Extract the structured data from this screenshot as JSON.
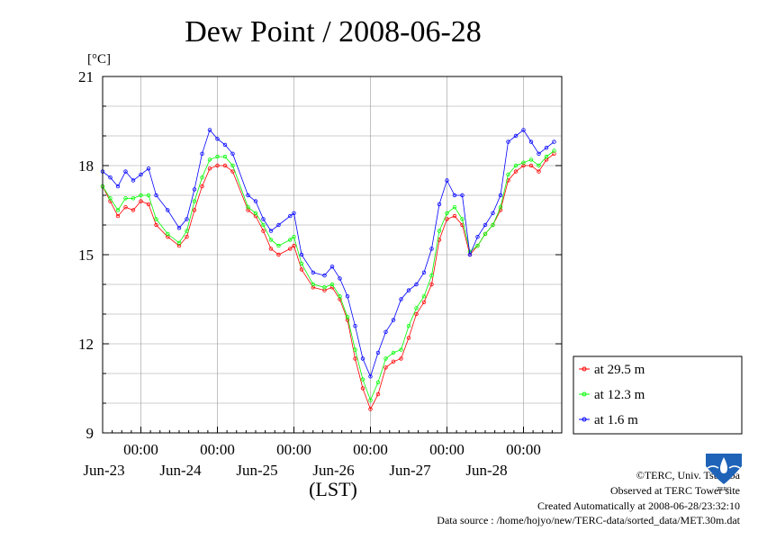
{
  "chart_data": {
    "type": "line",
    "title": "Dew Point / 2008-06-28",
    "yunit": "[°C]",
    "xlabel": "(LST)",
    "ylim": [
      9,
      21
    ],
    "yticks": [
      9,
      12,
      15,
      18,
      21
    ],
    "xlim": [
      0,
      6
    ],
    "x_units": "days from 2008-06-22 12:00 LST",
    "x_ticks": [
      {
        "x": 0.5,
        "label": "00:00",
        "date": "Jun-23"
      },
      {
        "x": 1.5,
        "label": "00:00",
        "date": "Jun-24"
      },
      {
        "x": 2.5,
        "label": "00:00",
        "date": "Jun-25"
      },
      {
        "x": 3.5,
        "label": "00:00",
        "date": "Jun-26"
      },
      {
        "x": 4.5,
        "label": "00:00",
        "date": "Jun-27"
      },
      {
        "x": 5.5,
        "label": "00:00",
        "date": "Jun-28"
      }
    ],
    "grid": true,
    "legend_position": "right-bottom",
    "series": [
      {
        "name": "at 29.5 m",
        "color": "#ff0000",
        "points": [
          [
            0.0,
            17.3
          ],
          [
            0.1,
            16.8
          ],
          [
            0.2,
            16.3
          ],
          [
            0.3,
            16.6
          ],
          [
            0.4,
            16.5
          ],
          [
            0.5,
            16.8
          ],
          [
            0.6,
            16.7
          ],
          [
            0.7,
            16.0
          ],
          [
            0.85,
            15.6
          ],
          [
            1.0,
            15.3
          ],
          [
            1.1,
            15.6
          ],
          [
            1.2,
            16.5
          ],
          [
            1.3,
            17.3
          ],
          [
            1.4,
            17.9
          ],
          [
            1.5,
            18.0
          ],
          [
            1.6,
            18.0
          ],
          [
            1.7,
            17.8
          ],
          [
            1.9,
            16.5
          ],
          [
            2.0,
            16.3
          ],
          [
            2.1,
            15.8
          ],
          [
            2.2,
            15.2
          ],
          [
            2.3,
            15.0
          ],
          [
            2.45,
            15.2
          ],
          [
            2.5,
            15.3
          ],
          [
            2.6,
            14.5
          ],
          [
            2.75,
            13.9
          ],
          [
            2.9,
            13.8
          ],
          [
            3.0,
            13.9
          ],
          [
            3.1,
            13.5
          ],
          [
            3.2,
            12.8
          ],
          [
            3.3,
            11.5
          ],
          [
            3.4,
            10.5
          ],
          [
            3.5,
            9.8
          ],
          [
            3.6,
            10.3
          ],
          [
            3.7,
            11.2
          ],
          [
            3.8,
            11.4
          ],
          [
            3.9,
            11.5
          ],
          [
            4.0,
            12.2
          ],
          [
            4.1,
            13.0
          ],
          [
            4.2,
            13.4
          ],
          [
            4.3,
            14.0
          ],
          [
            4.4,
            15.5
          ],
          [
            4.5,
            16.2
          ],
          [
            4.6,
            16.3
          ],
          [
            4.7,
            16.0
          ],
          [
            4.8,
            15.0
          ],
          [
            4.9,
            15.3
          ],
          [
            5.0,
            15.7
          ],
          [
            5.1,
            16.0
          ],
          [
            5.2,
            16.5
          ],
          [
            5.3,
            17.5
          ],
          [
            5.4,
            17.8
          ],
          [
            5.5,
            18.0
          ],
          [
            5.6,
            18.0
          ],
          [
            5.7,
            17.8
          ],
          [
            5.8,
            18.2
          ],
          [
            5.9,
            18.4
          ]
        ]
      },
      {
        "name": "at 12.3 m",
        "color": "#00ff00",
        "points": [
          [
            0.0,
            17.3
          ],
          [
            0.1,
            16.9
          ],
          [
            0.2,
            16.5
          ],
          [
            0.3,
            16.9
          ],
          [
            0.4,
            16.9
          ],
          [
            0.5,
            17.0
          ],
          [
            0.6,
            17.0
          ],
          [
            0.7,
            16.2
          ],
          [
            0.85,
            15.7
          ],
          [
            1.0,
            15.4
          ],
          [
            1.1,
            15.8
          ],
          [
            1.2,
            16.8
          ],
          [
            1.3,
            17.6
          ],
          [
            1.4,
            18.2
          ],
          [
            1.5,
            18.3
          ],
          [
            1.6,
            18.3
          ],
          [
            1.7,
            18.0
          ],
          [
            1.9,
            16.6
          ],
          [
            2.0,
            16.4
          ],
          [
            2.1,
            16.0
          ],
          [
            2.2,
            15.5
          ],
          [
            2.3,
            15.3
          ],
          [
            2.45,
            15.5
          ],
          [
            2.5,
            15.6
          ],
          [
            2.6,
            14.7
          ],
          [
            2.75,
            14.0
          ],
          [
            2.9,
            13.9
          ],
          [
            3.0,
            14.0
          ],
          [
            3.1,
            13.6
          ],
          [
            3.2,
            12.9
          ],
          [
            3.3,
            11.8
          ],
          [
            3.4,
            10.8
          ],
          [
            3.5,
            10.1
          ],
          [
            3.6,
            10.7
          ],
          [
            3.7,
            11.5
          ],
          [
            3.8,
            11.7
          ],
          [
            3.9,
            11.8
          ],
          [
            4.0,
            12.6
          ],
          [
            4.1,
            13.2
          ],
          [
            4.2,
            13.6
          ],
          [
            4.3,
            14.3
          ],
          [
            4.4,
            15.8
          ],
          [
            4.5,
            16.4
          ],
          [
            4.6,
            16.6
          ],
          [
            4.7,
            16.2
          ],
          [
            4.8,
            15.1
          ],
          [
            4.9,
            15.3
          ],
          [
            5.0,
            15.7
          ],
          [
            5.1,
            16.0
          ],
          [
            5.2,
            16.6
          ],
          [
            5.3,
            17.7
          ],
          [
            5.4,
            18.0
          ],
          [
            5.5,
            18.1
          ],
          [
            5.6,
            18.2
          ],
          [
            5.7,
            18.0
          ],
          [
            5.8,
            18.3
          ],
          [
            5.9,
            18.5
          ]
        ]
      },
      {
        "name": "at 1.6 m",
        "color": "#0000ff",
        "points": [
          [
            0.0,
            17.8
          ],
          [
            0.1,
            17.6
          ],
          [
            0.2,
            17.3
          ],
          [
            0.3,
            17.8
          ],
          [
            0.4,
            17.5
          ],
          [
            0.5,
            17.7
          ],
          [
            0.6,
            17.9
          ],
          [
            0.7,
            17.0
          ],
          [
            0.85,
            16.5
          ],
          [
            1.0,
            15.9
          ],
          [
            1.1,
            16.2
          ],
          [
            1.2,
            17.2
          ],
          [
            1.3,
            18.4
          ],
          [
            1.4,
            19.2
          ],
          [
            1.5,
            18.9
          ],
          [
            1.6,
            18.7
          ],
          [
            1.7,
            18.4
          ],
          [
            1.9,
            17.0
          ],
          [
            2.0,
            16.8
          ],
          [
            2.1,
            16.2
          ],
          [
            2.2,
            15.8
          ],
          [
            2.3,
            16.0
          ],
          [
            2.45,
            16.3
          ],
          [
            2.5,
            16.4
          ],
          [
            2.6,
            15.0
          ],
          [
            2.75,
            14.4
          ],
          [
            2.9,
            14.3
          ],
          [
            3.0,
            14.6
          ],
          [
            3.1,
            14.2
          ],
          [
            3.2,
            13.6
          ],
          [
            3.3,
            12.6
          ],
          [
            3.4,
            11.5
          ],
          [
            3.5,
            10.9
          ],
          [
            3.6,
            11.7
          ],
          [
            3.7,
            12.4
          ],
          [
            3.8,
            12.8
          ],
          [
            3.9,
            13.5
          ],
          [
            4.0,
            13.8
          ],
          [
            4.1,
            14.0
          ],
          [
            4.2,
            14.4
          ],
          [
            4.3,
            15.2
          ],
          [
            4.4,
            16.7
          ],
          [
            4.5,
            17.5
          ],
          [
            4.6,
            17.0
          ],
          [
            4.7,
            17.0
          ],
          [
            4.8,
            15.0
          ],
          [
            4.9,
            15.6
          ],
          [
            5.0,
            16.0
          ],
          [
            5.1,
            16.4
          ],
          [
            5.2,
            17.0
          ],
          [
            5.3,
            18.8
          ],
          [
            5.4,
            19.0
          ],
          [
            5.5,
            19.2
          ],
          [
            5.6,
            18.8
          ],
          [
            5.7,
            18.4
          ],
          [
            5.8,
            18.6
          ],
          [
            5.9,
            18.8
          ]
        ]
      }
    ]
  },
  "footer": {
    "copyright": "©TERC, Univ. Tsukuba",
    "observed": "Observed at TERC Tower site",
    "created": "Created Automatically at 2008-06-28/23:32:10",
    "source": "Data source : /home/hojyo/new/TERC-data/sorted_data/MET.30m.dat"
  },
  "logo": {
    "text": "TERC",
    "color": "#1e63b8"
  }
}
